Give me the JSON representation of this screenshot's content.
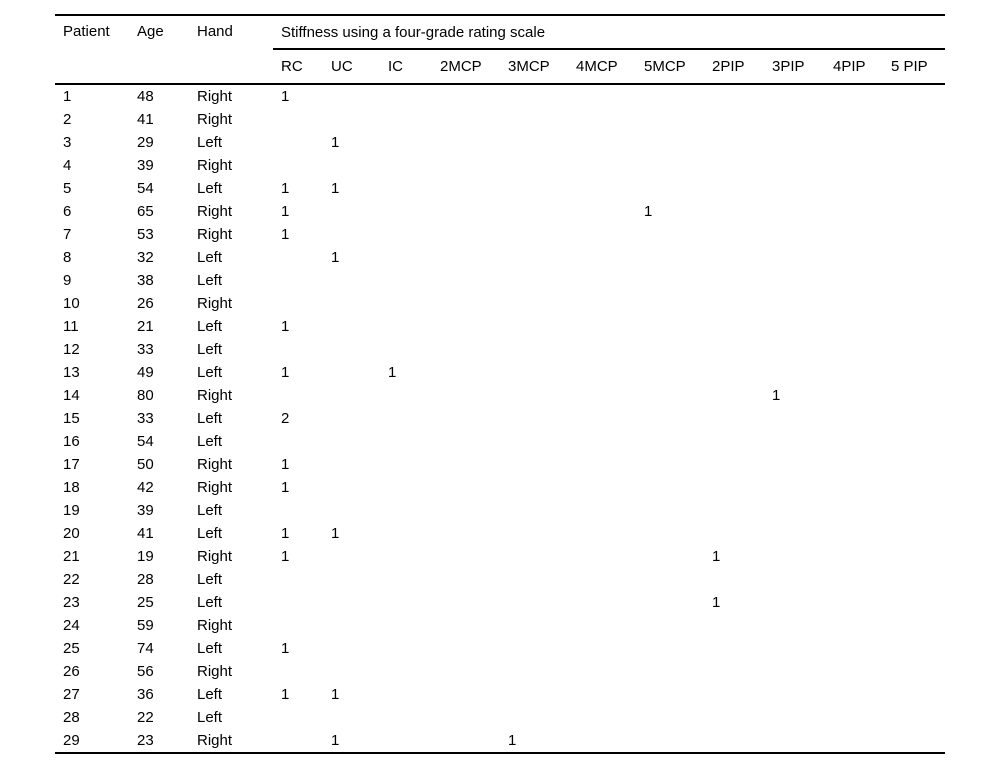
{
  "page": {
    "background_color": "#ffffff",
    "text_color": "#000000"
  },
  "table": {
    "columns": [
      "Patient",
      "Age",
      "Hand"
    ],
    "group_header": "Stiffness using a four-grade rating scale",
    "sub_columns": [
      "RC",
      "UC",
      "IC",
      "2MCP",
      "3MCP",
      "4MCP",
      "5MCP",
      "2PIP",
      "3PIP",
      "4PIP",
      "5 PIP"
    ],
    "rows": [
      {
        "patient": "1",
        "age": "48",
        "hand": "Right",
        "scores": [
          "1",
          "",
          "",
          "",
          "",
          "",
          "",
          "",
          "",
          "",
          ""
        ]
      },
      {
        "patient": "2",
        "age": "41",
        "hand": "Right",
        "scores": [
          "",
          "",
          "",
          "",
          "",
          "",
          "",
          "",
          "",
          "",
          ""
        ]
      },
      {
        "patient": "3",
        "age": "29",
        "hand": "Left",
        "scores": [
          "",
          "1",
          "",
          "",
          "",
          "",
          "",
          "",
          "",
          "",
          ""
        ]
      },
      {
        "patient": "4",
        "age": "39",
        "hand": "Right",
        "scores": [
          "",
          "",
          "",
          "",
          "",
          "",
          "",
          "",
          "",
          "",
          ""
        ]
      },
      {
        "patient": "5",
        "age": "54",
        "hand": "Left",
        "scores": [
          "1",
          "1",
          "",
          "",
          "",
          "",
          "",
          "",
          "",
          "",
          ""
        ]
      },
      {
        "patient": "6",
        "age": "65",
        "hand": "Right",
        "scores": [
          "1",
          "",
          "",
          "",
          "",
          "",
          "1",
          "",
          "",
          "",
          ""
        ]
      },
      {
        "patient": "7",
        "age": "53",
        "hand": "Right",
        "scores": [
          "1",
          "",
          "",
          "",
          "",
          "",
          "",
          "",
          "",
          "",
          ""
        ]
      },
      {
        "patient": "8",
        "age": "32",
        "hand": "Left",
        "scores": [
          "",
          "1",
          "",
          "",
          "",
          "",
          "",
          "",
          "",
          "",
          ""
        ]
      },
      {
        "patient": "9",
        "age": "38",
        "hand": "Left",
        "scores": [
          "",
          "",
          "",
          "",
          "",
          "",
          "",
          "",
          "",
          "",
          ""
        ]
      },
      {
        "patient": "10",
        "age": "26",
        "hand": "Right",
        "scores": [
          "",
          "",
          "",
          "",
          "",
          "",
          "",
          "",
          "",
          "",
          ""
        ]
      },
      {
        "patient": "11",
        "age": "21",
        "hand": "Left",
        "scores": [
          "1",
          "",
          "",
          "",
          "",
          "",
          "",
          "",
          "",
          "",
          ""
        ]
      },
      {
        "patient": "12",
        "age": "33",
        "hand": "Left",
        "scores": [
          "",
          "",
          "",
          "",
          "",
          "",
          "",
          "",
          "",
          "",
          ""
        ]
      },
      {
        "patient": "13",
        "age": "49",
        "hand": "Left",
        "scores": [
          "1",
          "",
          "1",
          "",
          "",
          "",
          "",
          "",
          "",
          "",
          ""
        ]
      },
      {
        "patient": "14",
        "age": "80",
        "hand": "Right",
        "scores": [
          "",
          "",
          "",
          "",
          "",
          "",
          "",
          "",
          "1",
          "",
          ""
        ]
      },
      {
        "patient": "15",
        "age": "33",
        "hand": "Left",
        "scores": [
          "2",
          "",
          "",
          "",
          "",
          "",
          "",
          "",
          "",
          "",
          ""
        ]
      },
      {
        "patient": "16",
        "age": "54",
        "hand": "Left",
        "scores": [
          "",
          "",
          "",
          "",
          "",
          "",
          "",
          "",
          "",
          "",
          ""
        ]
      },
      {
        "patient": "17",
        "age": "50",
        "hand": "Right",
        "scores": [
          "1",
          "",
          "",
          "",
          "",
          "",
          "",
          "",
          "",
          "",
          ""
        ]
      },
      {
        "patient": "18",
        "age": "42",
        "hand": "Right",
        "scores": [
          "1",
          "",
          "",
          "",
          "",
          "",
          "",
          "",
          "",
          "",
          ""
        ]
      },
      {
        "patient": "19",
        "age": "39",
        "hand": "Left",
        "scores": [
          "",
          "",
          "",
          "",
          "",
          "",
          "",
          "",
          "",
          "",
          ""
        ]
      },
      {
        "patient": "20",
        "age": "41",
        "hand": "Left",
        "scores": [
          "1",
          "1",
          "",
          "",
          "",
          "",
          "",
          "",
          "",
          "",
          ""
        ]
      },
      {
        "patient": "21",
        "age": "19",
        "hand": "Right",
        "scores": [
          "1",
          "",
          "",
          "",
          "",
          "",
          "",
          "1",
          "",
          "",
          ""
        ]
      },
      {
        "patient": "22",
        "age": "28",
        "hand": "Left",
        "scores": [
          "",
          "",
          "",
          "",
          "",
          "",
          "",
          "",
          "",
          "",
          ""
        ]
      },
      {
        "patient": "23",
        "age": "25",
        "hand": "Left",
        "scores": [
          "",
          "",
          "",
          "",
          "",
          "",
          "",
          "1",
          "",
          "",
          ""
        ]
      },
      {
        "patient": "24",
        "age": "59",
        "hand": "Right",
        "scores": [
          "",
          "",
          "",
          "",
          "",
          "",
          "",
          "",
          "",
          "",
          ""
        ]
      },
      {
        "patient": "25",
        "age": "74",
        "hand": "Left",
        "scores": [
          "1",
          "",
          "",
          "",
          "",
          "",
          "",
          "",
          "",
          "",
          ""
        ]
      },
      {
        "patient": "26",
        "age": "56",
        "hand": "Right",
        "scores": [
          "",
          "",
          "",
          "",
          "",
          "",
          "",
          "",
          "",
          "",
          ""
        ]
      },
      {
        "patient": "27",
        "age": "36",
        "hand": "Left",
        "scores": [
          "1",
          "1",
          "",
          "",
          "",
          "",
          "",
          "",
          "",
          "",
          ""
        ]
      },
      {
        "patient": "28",
        "age": "22",
        "hand": "Left",
        "scores": [
          "",
          "",
          "",
          "",
          "",
          "",
          "",
          "",
          "",
          "",
          ""
        ]
      },
      {
        "patient": "29",
        "age": "23",
        "hand": "Right",
        "scores": [
          "",
          "1",
          "",
          "",
          "1",
          "",
          "",
          "",
          "",
          "",
          ""
        ]
      }
    ]
  }
}
